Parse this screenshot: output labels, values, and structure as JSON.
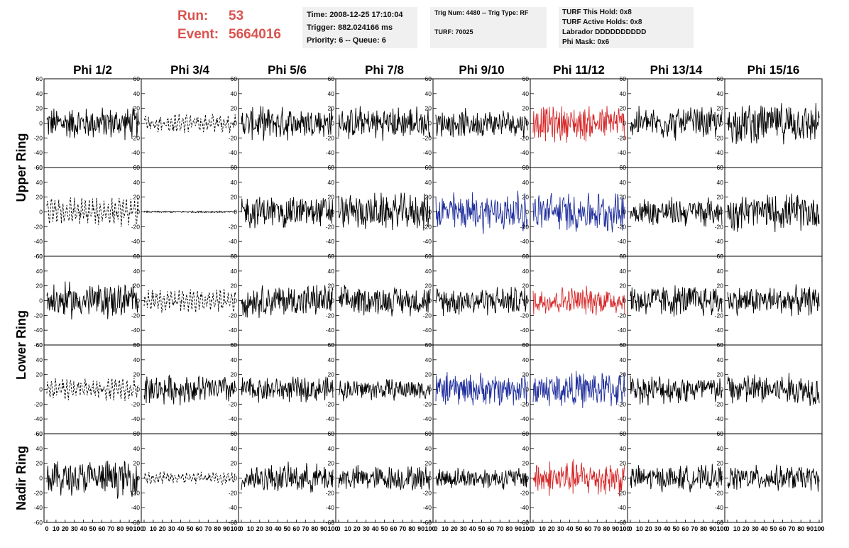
{
  "header": {
    "run_label": "Run:",
    "run_value": "53",
    "event_label": "Event:",
    "event_value": "5664016"
  },
  "info_box_1": {
    "time": "Time: 2008-12-25 17:10:04",
    "trigger": "Trigger: 882.024166 ms",
    "priority": "Priority: 6 -- Queue: 6"
  },
  "info_box_2": {
    "trig": "Trig Num: 4480 -- Trig Type: RF",
    "turf": "TURF: 70025"
  },
  "info_box_3": {
    "this_hold": "TURF This Hold: 0x8",
    "active_holds": "TURF Active Holds: 0x8",
    "labrador": "Labrador DDDDDDDDDD",
    "phi_mask": "Phi Mask: 0x6"
  },
  "colors": {
    "trace_default": "#000000",
    "trace_red": "#d62728",
    "trace_blue": "#1f2e9c",
    "header_red": "#d9534f",
    "info_bg": "#f0f0f0"
  },
  "chart_data": {
    "type": "line",
    "columns": [
      "Phi 1/2",
      "Phi 3/4",
      "Phi 5/6",
      "Phi 7/8",
      "Phi 9/10",
      "Phi 11/12",
      "Phi 13/14",
      "Phi 15/16"
    ],
    "row_labels": [
      "Upper Ring",
      "Lower Ring",
      "Nadir Ring"
    ],
    "rows_per_label": [
      2,
      2,
      1
    ],
    "xlim": [
      0,
      100
    ],
    "ylim": [
      -60,
      60
    ],
    "x_ticks": [
      0,
      10,
      20,
      30,
      40,
      50,
      60,
      70,
      80,
      90,
      100
    ],
    "y_ticks": [
      -60,
      -40,
      -20,
      0,
      20,
      40,
      60
    ],
    "trace_style_grid": [
      [
        "solid",
        "dashed",
        "solid",
        "solid",
        "solid",
        "red",
        "solid",
        "solid"
      ],
      [
        "dashed",
        "flat",
        "solid",
        "solid",
        "blue",
        "blue",
        "solid",
        "solid"
      ],
      [
        "solid",
        "dashed",
        "solid",
        "solid",
        "solid",
        "red",
        "solid",
        "solid"
      ],
      [
        "dashed",
        "solid",
        "solid",
        "solid",
        "blue",
        "blue",
        "solid",
        "solid"
      ],
      [
        "solid",
        "dashed",
        "solid",
        "solid",
        "solid",
        "red",
        "solid",
        "solid"
      ]
    ],
    "amplitude_grid": [
      [
        18,
        12,
        18,
        18,
        15,
        20,
        18,
        22
      ],
      [
        18,
        2,
        18,
        20,
        22,
        22,
        16,
        20
      ],
      [
        20,
        14,
        18,
        16,
        16,
        16,
        18,
        16
      ],
      [
        14,
        16,
        14,
        12,
        18,
        20,
        16,
        18
      ],
      [
        20,
        8,
        16,
        14,
        12,
        20,
        14,
        14
      ]
    ],
    "grid": false
  }
}
